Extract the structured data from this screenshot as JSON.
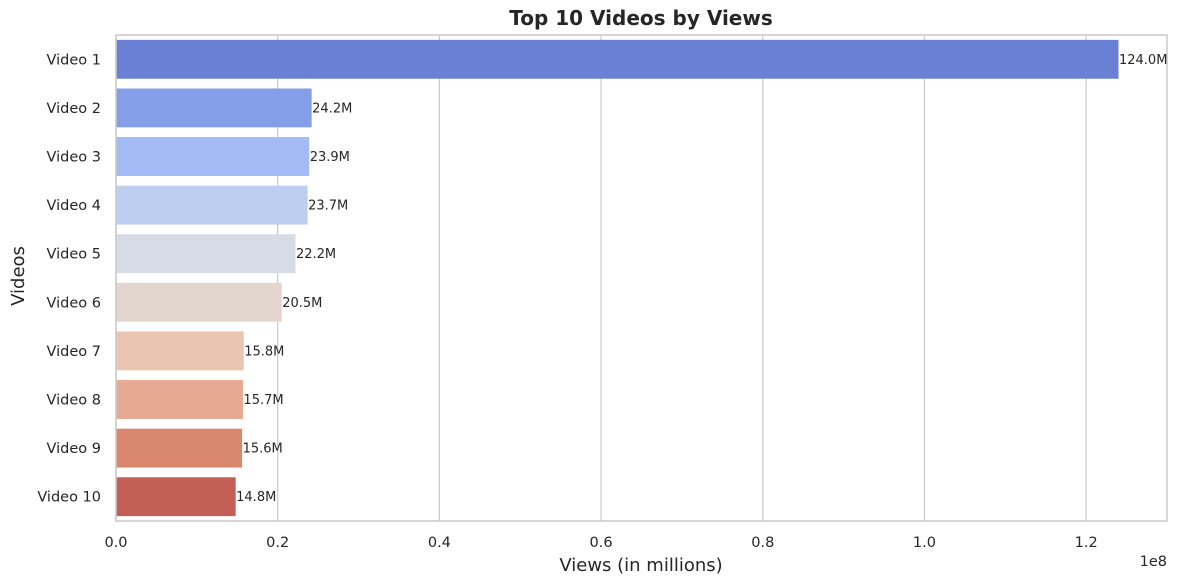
{
  "chart_data": {
    "type": "bar",
    "orientation": "horizontal",
    "title": "Top 10 Videos by Views",
    "xlabel": "Views (in millions)",
    "ylabel": "Videos",
    "x_tick_labels": [
      "0.0",
      "0.2",
      "0.4",
      "0.6",
      "0.8",
      "1.0",
      "1.2"
    ],
    "x_offset_label": "1e8",
    "xlim": [
      0,
      130000000
    ],
    "grid": "vertical",
    "categories": [
      "Video 1",
      "Video 2",
      "Video 3",
      "Video 4",
      "Video 5",
      "Video 6",
      "Video 7",
      "Video 8",
      "Video 9",
      "Video 10"
    ],
    "values": [
      124000000,
      24200000,
      23900000,
      23700000,
      22200000,
      20500000,
      15800000,
      15700000,
      15600000,
      14800000
    ],
    "data_labels": [
      "124.0M",
      "24.2M",
      "23.9M",
      "23.7M",
      "22.2M",
      "20.5M",
      "15.8M",
      "15.7M",
      "15.6M",
      "14.8M"
    ],
    "colors": [
      "#6a80d4",
      "#849fe8",
      "#a2bbf4",
      "#bdcff1",
      "#d6dbe6",
      "#e3d6ce",
      "#eac5b2",
      "#e7a991",
      "#d9876f",
      "#c45f55"
    ]
  }
}
